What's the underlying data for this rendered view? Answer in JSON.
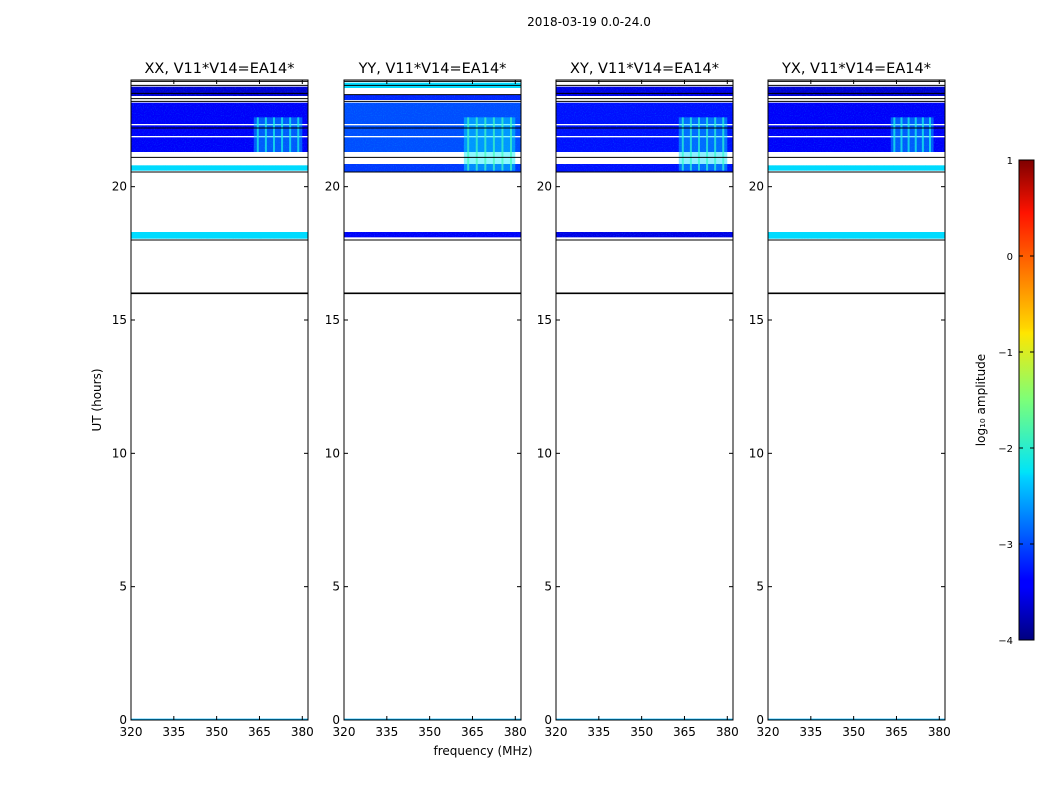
{
  "suptitle": "2018-03-19 0.0-24.0",
  "chart_data": {
    "type": "heatmap",
    "xlabel": "frequency (MHz)",
    "ylabel": "UT (hours)",
    "xlim": [
      320,
      382
    ],
    "ylim": [
      0,
      24
    ],
    "xticks": [
      320,
      335,
      350,
      365,
      380
    ],
    "yticks": [
      0,
      5,
      10,
      15,
      20
    ],
    "panels": [
      {
        "title": "XX, V11*V14=EA14*",
        "bands": [
          {
            "t0": 23.4,
            "t1": 23.75,
            "level": -3.6
          },
          {
            "t0": 22.35,
            "t1": 23.15,
            "level": -3.4
          },
          {
            "t0": 21.9,
            "t1": 22.3,
            "level": -3.4
          },
          {
            "t0": 21.3,
            "t1": 21.85,
            "level": -3.4
          },
          {
            "t0": 20.6,
            "t1": 20.8,
            "level": -2.3
          },
          {
            "t0": 18.05,
            "t1": 18.3,
            "level": -2.3
          },
          {
            "t0": 0.0,
            "t1": 0.05,
            "level": -2.5
          }
        ],
        "rfi": [
          {
            "f0": 363,
            "f1": 380,
            "t0": 21.3,
            "t1": 22.6,
            "level": -2.4
          }
        ],
        "lines": [
          23.95,
          23.8,
          23.5,
          23.3,
          23.2,
          22.2,
          21.1,
          20.55,
          18.0,
          16.0
        ]
      },
      {
        "title": "YY, V11*V14=EA14*",
        "bands": [
          {
            "t0": 23.7,
            "t1": 23.9,
            "level": -2.3
          },
          {
            "t0": 23.25,
            "t1": 23.45,
            "level": -3.2
          },
          {
            "t0": 22.35,
            "t1": 23.15,
            "level": -3.0
          },
          {
            "t0": 21.9,
            "t1": 22.3,
            "level": -3.0
          },
          {
            "t0": 21.3,
            "t1": 21.85,
            "level": -3.0
          },
          {
            "t0": 20.55,
            "t1": 20.85,
            "level": -3.1
          },
          {
            "t0": 18.1,
            "t1": 18.3,
            "level": -3.4
          },
          {
            "t0": 0.0,
            "t1": 0.05,
            "level": -2.5
          }
        ],
        "rfi": [
          {
            "f0": 362,
            "f1": 380,
            "t0": 20.6,
            "t1": 22.6,
            "level": -2.2
          }
        ],
        "lines": [
          23.95,
          23.8,
          23.45,
          23.2,
          22.2,
          21.1,
          20.55,
          18.0,
          16.0
        ]
      },
      {
        "title": "XY, V11*V14=EA14*",
        "bands": [
          {
            "t0": 23.4,
            "t1": 23.75,
            "level": -3.5
          },
          {
            "t0": 22.35,
            "t1": 23.15,
            "level": -3.3
          },
          {
            "t0": 21.9,
            "t1": 22.3,
            "level": -3.3
          },
          {
            "t0": 21.3,
            "t1": 21.85,
            "level": -3.3
          },
          {
            "t0": 20.55,
            "t1": 20.85,
            "level": -3.3
          },
          {
            "t0": 18.1,
            "t1": 18.3,
            "level": -3.5
          },
          {
            "t0": 0.0,
            "t1": 0.05,
            "level": -2.5
          }
        ],
        "rfi": [
          {
            "f0": 363,
            "f1": 380,
            "t0": 20.6,
            "t1": 22.6,
            "level": -2.3
          }
        ],
        "lines": [
          23.95,
          23.8,
          23.5,
          23.3,
          23.2,
          22.2,
          21.1,
          20.55,
          18.0,
          16.0
        ]
      },
      {
        "title": "YX, V11*V14=EA14*",
        "bands": [
          {
            "t0": 23.4,
            "t1": 23.75,
            "level": -3.6
          },
          {
            "t0": 22.35,
            "t1": 23.15,
            "level": -3.4
          },
          {
            "t0": 21.9,
            "t1": 22.3,
            "level": -3.4
          },
          {
            "t0": 21.3,
            "t1": 21.85,
            "level": -3.4
          },
          {
            "t0": 20.6,
            "t1": 20.8,
            "level": -2.3
          },
          {
            "t0": 18.05,
            "t1": 18.3,
            "level": -2.3
          },
          {
            "t0": 0.0,
            "t1": 0.05,
            "level": -2.5
          }
        ],
        "rfi": [
          {
            "f0": 363,
            "f1": 378,
            "t0": 21.3,
            "t1": 22.6,
            "level": -2.4
          }
        ],
        "lines": [
          23.95,
          23.8,
          23.5,
          23.3,
          23.2,
          22.2,
          21.1,
          20.55,
          18.0,
          16.0
        ]
      }
    ],
    "colorbar": {
      "label": "log₁₀ amplitude",
      "range": [
        -4,
        1
      ],
      "ticks": [
        "1",
        "0",
        "−1",
        "−2",
        "−3",
        "−4"
      ],
      "colormap": "jet"
    }
  }
}
